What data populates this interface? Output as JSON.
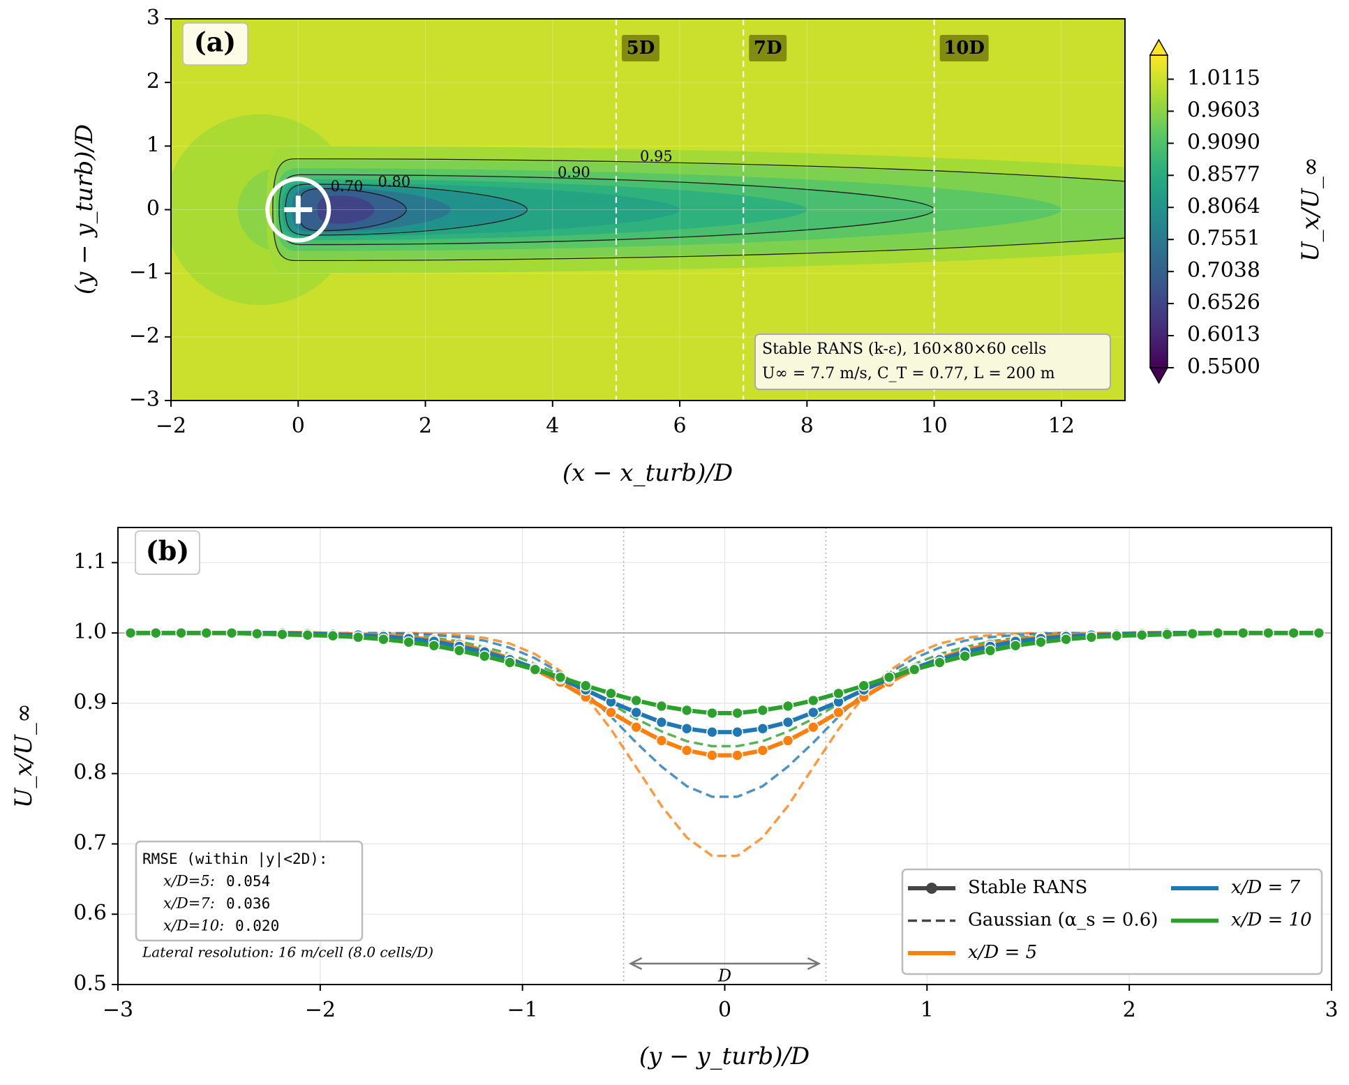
{
  "chart_data": [
    {
      "type": "contour",
      "panel_label": "(a)",
      "xlabel": "(x − x_turb)/D",
      "ylabel": "(y − y_turb)/D",
      "xlim": [
        -2,
        13
      ],
      "ylim": [
        -3,
        3
      ],
      "xticks": [
        {
          "value": -2,
          "label": "−2"
        },
        0,
        2,
        4,
        6,
        8,
        10,
        12
      ],
      "yticks": [
        {
          "value": -3,
          "label": "−3"
        },
        {
          "value": -2,
          "label": "−2"
        },
        {
          "value": -1,
          "label": "−1"
        },
        0,
        1,
        2,
        3
      ],
      "grid": true,
      "colormap": "viridis",
      "clim": [
        0.55,
        1.05
      ],
      "colorbar_label": "U_x/U_∞",
      "colorbar_ticks": [
        {
          "value": 0.55,
          "label": "0.5500"
        },
        0.6013,
        0.6526,
        0.7038,
        0.7551,
        0.8064,
        0.8577,
        {
          "value": 0.909,
          "label": "0.9090"
        },
        0.9603,
        1.0115
      ],
      "background_level": 1.01,
      "induction_regions": [
        {
          "level": 0.985,
          "x_center": -0.6,
          "radius": 1.5
        },
        {
          "level": 0.96,
          "x_center": -0.3,
          "radius": 0.65
        }
      ],
      "wake_regions": [
        {
          "level": 0.98,
          "x_start": -0.5,
          "x_end": 18,
          "half_width": 1.0
        },
        {
          "level": 0.95,
          "x_start": -0.4,
          "x_end": 16,
          "half_width": 0.78
        },
        {
          "level": 0.92,
          "x_start": -0.35,
          "x_end": 12,
          "half_width": 0.65
        },
        {
          "level": 0.9,
          "x_start": -0.3,
          "x_end": 10,
          "half_width": 0.55
        },
        {
          "level": 0.87,
          "x_start": -0.3,
          "x_end": 8,
          "half_width": 0.48
        },
        {
          "level": 0.84,
          "x_start": -0.25,
          "x_end": 6,
          "half_width": 0.42
        },
        {
          "level": 0.8,
          "x_start": -0.2,
          "x_end": 3.6,
          "half_width": 0.38
        },
        {
          "level": 0.75,
          "x_start": -0.1,
          "x_end": 2.4,
          "half_width": 0.35
        },
        {
          "level": 0.7,
          "x_start": 0,
          "x_end": 1.7,
          "half_width": 0.32
        },
        {
          "level": 0.65,
          "x_start": 0.3,
          "x_end": 1.2,
          "half_width": 0.22
        }
      ],
      "contours": [
        {
          "level": 0.95,
          "label": "0.95",
          "x_start": -0.4,
          "x_end": 16,
          "half_width": 0.8
        },
        {
          "level": 0.9,
          "label": "0.90",
          "x_start": -0.3,
          "x_end": 10,
          "half_width": 0.55
        },
        {
          "level": 0.8,
          "label": "0.80",
          "x_start": -0.2,
          "x_end": 3.6,
          "half_width": 0.4
        },
        {
          "level": 0.7,
          "label": "0.70",
          "x_start": 0,
          "x_end": 1.7,
          "half_width": 0.33
        }
      ],
      "turbine_xy": [
        0,
        0
      ],
      "downstream_lines": [
        {
          "value": 5,
          "label": "5D"
        },
        {
          "value": 7,
          "label": "7D"
        },
        {
          "value": 10,
          "label": "10D"
        }
      ],
      "annotation": [
        "Stable RANS (k-ε), 160×80×60 cells",
        "U∞ = 7.7 m/s, C_T = 0.77, L = 200 m"
      ]
    },
    {
      "type": "line",
      "panel_label": "(b)",
      "xlabel": "(y − y_turb)/D",
      "ylabel": "U_x/U_∞",
      "xlim": [
        -3,
        3
      ],
      "ylim": [
        0.5,
        1.15
      ],
      "xticks": [
        {
          "value": -3,
          "label": "−3"
        },
        {
          "value": -2,
          "label": "−2"
        },
        {
          "value": -1,
          "label": "−1"
        },
        0,
        1,
        2,
        3
      ],
      "yticks": [
        0.5,
        0.6,
        0.7,
        0.8,
        0.9,
        {
          "value": 1,
          "label": "1.0"
        },
        1.1
      ],
      "grid": true,
      "reference_line": 1,
      "rotor_edges": [
        -0.5,
        0.5
      ],
      "rotor_label": "D",
      "x": [
        -2.9375,
        -2.8125,
        -2.6875,
        -2.5625,
        -2.4375,
        -2.3125,
        -2.1875,
        -2.0625,
        -1.9375,
        -1.8125,
        -1.6875,
        -1.5625,
        -1.4375,
        -1.3125,
        -1.1875,
        -1.0625,
        -0.9375,
        -0.8125,
        -0.6875,
        -0.5625,
        -0.4375,
        -0.3125,
        -0.1875,
        -0.0625,
        0.0625,
        0.1875,
        0.3125,
        0.4375,
        0.5625,
        0.6875,
        0.8125,
        0.9375,
        1.0625,
        1.1875,
        1.3125,
        1.4375,
        1.5625,
        1.6875,
        1.8125,
        1.9375,
        2.0625,
        2.1875,
        2.3125,
        2.4375,
        2.5625,
        2.6875,
        2.8125,
        2.9375
      ],
      "legend_styles": [
        "Stable RANS",
        "Gaussian (α_s = 0.6)"
      ],
      "legend_loc": "lower right",
      "series": [
        {
          "name": "x/D = 5",
          "color": "#ff7f0e",
          "rans": [
            1,
            1,
            1,
            1,
            1,
            1,
            1,
            1,
            0.999,
            0.998,
            0.997,
            0.994,
            0.99,
            0.984,
            0.975,
            0.964,
            0.948,
            0.93,
            0.909,
            0.887,
            0.866,
            0.847,
            0.833,
            0.826,
            0.826,
            0.833,
            0.847,
            0.866,
            0.887,
            0.909,
            0.93,
            0.948,
            0.964,
            0.975,
            0.984,
            0.99,
            0.994,
            0.997,
            0.998,
            0.999,
            1,
            1,
            1,
            1,
            1,
            1,
            1,
            1
          ],
          "gaussian": [
            1,
            1,
            1,
            1,
            1,
            1,
            1,
            1,
            1,
            1,
            1,
            1,
            0.999,
            0.997,
            0.993,
            0.985,
            0.97,
            0.946,
            0.91,
            0.863,
            0.809,
            0.754,
            0.709,
            0.683,
            0.683,
            0.709,
            0.754,
            0.809,
            0.863,
            0.91,
            0.946,
            0.97,
            0.985,
            0.993,
            0.997,
            0.999,
            1,
            1,
            1,
            1,
            1,
            1,
            1,
            1,
            1,
            1,
            1,
            1
          ]
        },
        {
          "name": "x/D = 7",
          "color": "#1f77b4",
          "rans": [
            1,
            1,
            1,
            1,
            1,
            1,
            1,
            0.999,
            0.998,
            0.997,
            0.995,
            0.992,
            0.988,
            0.981,
            0.973,
            0.962,
            0.95,
            0.935,
            0.919,
            0.902,
            0.887,
            0.873,
            0.864,
            0.859,
            0.859,
            0.864,
            0.873,
            0.887,
            0.902,
            0.919,
            0.935,
            0.95,
            0.962,
            0.973,
            0.981,
            0.988,
            0.992,
            0.995,
            0.997,
            0.998,
            0.999,
            1,
            1,
            1,
            1,
            1,
            1,
            1
          ],
          "gaussian": [
            1,
            1,
            1,
            1,
            1,
            1,
            1,
            1,
            1,
            1,
            1,
            0.999,
            0.997,
            0.994,
            0.989,
            0.979,
            0.964,
            0.943,
            0.915,
            0.881,
            0.844,
            0.81,
            0.782,
            0.767,
            0.767,
            0.782,
            0.81,
            0.844,
            0.881,
            0.915,
            0.943,
            0.964,
            0.979,
            0.989,
            0.994,
            0.997,
            0.999,
            1,
            1,
            1,
            1,
            1,
            1,
            1,
            1,
            1,
            1,
            1
          ]
        },
        {
          "name": "x/D = 10",
          "color": "#2ca02c",
          "rans": [
            1,
            1,
            1,
            1,
            1,
            0.999,
            0.998,
            0.997,
            0.996,
            0.994,
            0.991,
            0.987,
            0.982,
            0.975,
            0.967,
            0.958,
            0.948,
            0.937,
            0.925,
            0.914,
            0.904,
            0.896,
            0.89,
            0.886,
            0.886,
            0.89,
            0.896,
            0.904,
            0.914,
            0.925,
            0.937,
            0.948,
            0.958,
            0.967,
            0.975,
            0.982,
            0.987,
            0.991,
            0.994,
            0.996,
            0.997,
            0.998,
            0.999,
            1,
            1,
            1,
            1,
            1
          ],
          "gaussian": [
            1,
            1,
            1,
            1,
            1,
            1,
            1,
            1,
            1,
            0.999,
            0.998,
            0.996,
            0.993,
            0.988,
            0.98,
            0.97,
            0.956,
            0.94,
            0.92,
            0.899,
            0.878,
            0.86,
            0.846,
            0.839,
            0.839,
            0.846,
            0.86,
            0.878,
            0.899,
            0.92,
            0.94,
            0.956,
            0.97,
            0.98,
            0.988,
            0.993,
            0.996,
            0.998,
            0.999,
            1,
            1,
            1,
            1,
            1,
            1,
            1,
            1,
            1
          ]
        }
      ],
      "rmse_title": "RMSE (within |y|<2D):",
      "rmse": [
        {
          "label": "x/D=5:",
          "value": "0.054"
        },
        {
          "label": "x/D=7:",
          "value": "0.036"
        },
        {
          "label": "x/D=10:",
          "value": "0.020"
        }
      ],
      "note": "Lateral resolution: 16 m/cell (8.0 cells/D)"
    }
  ]
}
